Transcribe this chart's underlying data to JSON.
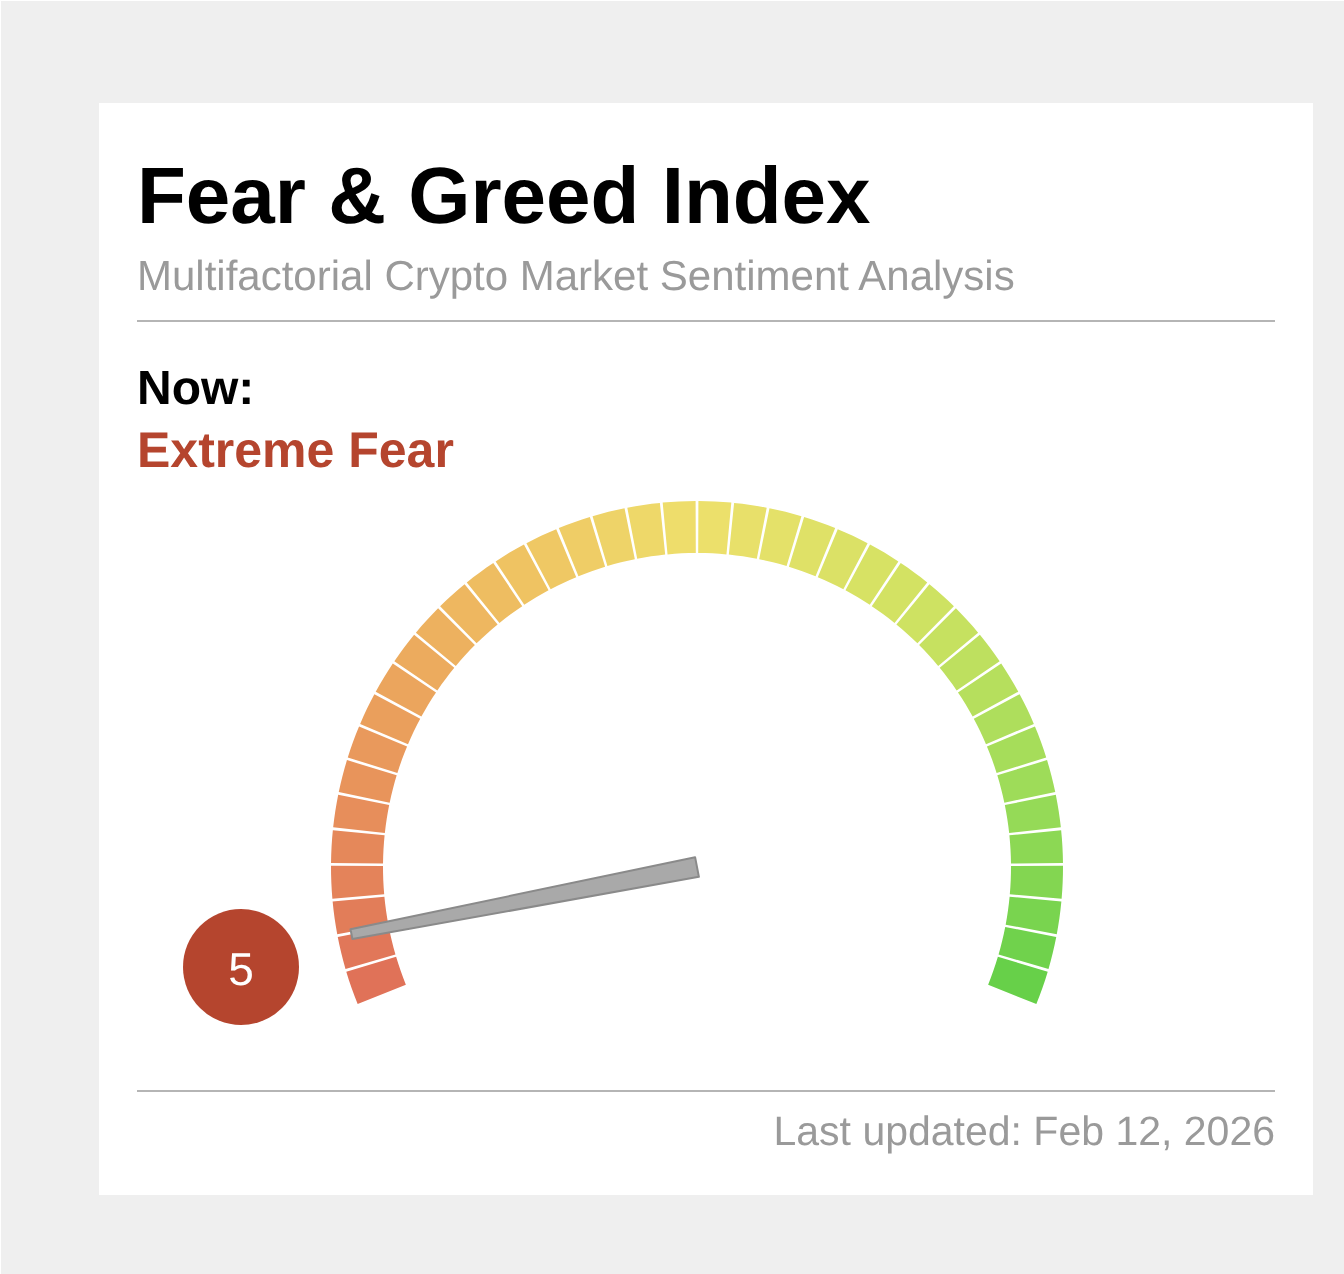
{
  "chart_data": {
    "type": "other",
    "title": "Fear & Greed Index",
    "subtitle": "Multifactorial Crypto Market Sentiment Analysis",
    "values": [
      5
    ],
    "colors": [
      "#b5452e"
    ],
    "data_labels": true,
    "annotations": [
      "Now:",
      "Extreme Fear",
      "Last updated: Feb 12, 2026"
    ]
  }
}
